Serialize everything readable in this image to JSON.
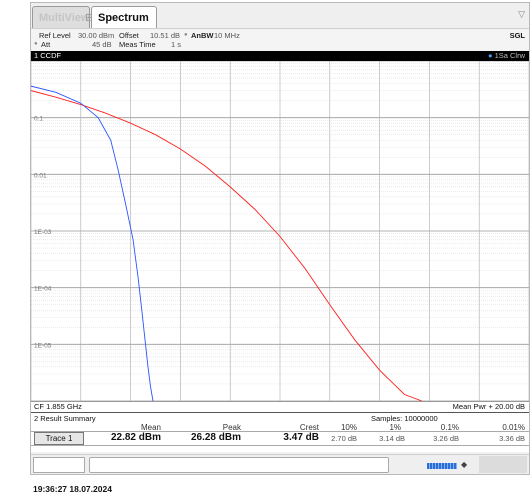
{
  "tabs": [
    {
      "label": "MultiView",
      "active": false
    },
    {
      "label": "Spectrum",
      "active": true
    }
  ],
  "tab_close_glyph": "⊞",
  "tab_menu_glyph": "▽",
  "params": {
    "ref_level_label": "Ref Level",
    "ref_level_value": "30.00 dBm",
    "offset_label": "Offset",
    "offset_value": "10.51 dB",
    "rbw_label": "AnBW",
    "rbw_value": "10 MHz",
    "att_label": "Att",
    "att_value": "45 dB",
    "meas_time_label": "Meas Time",
    "meas_time_value": "1 s",
    "mode": "SGL"
  },
  "chart_header": {
    "left": "1 CCDF",
    "right": "1Sa Clrw"
  },
  "plot_footer": {
    "left": "CF 1.855 GHz",
    "right": "Mean Pwr + 20.00 dB"
  },
  "summary": {
    "title": "2 Result Summary",
    "samples": "Samples: 10000000",
    "columns": [
      "Mean",
      "Peak",
      "Crest",
      "10%",
      "1%",
      "0.1%",
      "0.01%"
    ],
    "row_label": "Trace 1",
    "mean": "22.82 dBm",
    "peak": "26.28 dBm",
    "crest": "3.47 dB",
    "p10": "2.70 dB",
    "p1": "3.14 dB",
    "p01": "3.26 dB",
    "p001": "3.36 dB"
  },
  "timestamp": "19:36:27 18.07.2024",
  "colors": {
    "trace_measured": "#ff2020",
    "trace_reference": "#2a55ff",
    "grid": "#c8c8c8",
    "header_bg": "#000000"
  },
  "chart_data": {
    "type": "line",
    "title": "1 CCDF",
    "yscale": "log",
    "ylim": [
      1e-06,
      1
    ],
    "xlim": [
      0,
      20
    ],
    "yticks": [
      "0.1",
      "0.01",
      "1E-03",
      "1E-04",
      "1E-05"
    ],
    "grid": true,
    "series": [
      {
        "color": "#ff2020",
        "x": [
          0,
          1,
          2,
          3,
          4,
          5,
          6,
          7,
          8,
          9,
          10,
          11,
          12,
          13,
          14,
          15,
          15.7
        ],
        "y": [
          0.3,
          0.23,
          0.17,
          0.12,
          0.08,
          0.05,
          0.028,
          0.014,
          0.006,
          0.0024,
          0.0008,
          0.00022,
          5e-05,
          1.2e-05,
          3.5e-06,
          1.3e-06,
          1e-06
        ]
      },
      {
        "color": "#2a55ff",
        "x": [
          0,
          1,
          2,
          2.7,
          3.2,
          3.5,
          3.8,
          4.1,
          4.3,
          4.45,
          4.6,
          4.7,
          4.8,
          4.9
        ],
        "y": [
          0.36,
          0.28,
          0.18,
          0.1,
          0.04,
          0.012,
          0.003,
          0.0007,
          0.00015,
          4e-05,
          1e-05,
          4e-06,
          1.8e-06,
          1e-06
        ]
      }
    ]
  }
}
